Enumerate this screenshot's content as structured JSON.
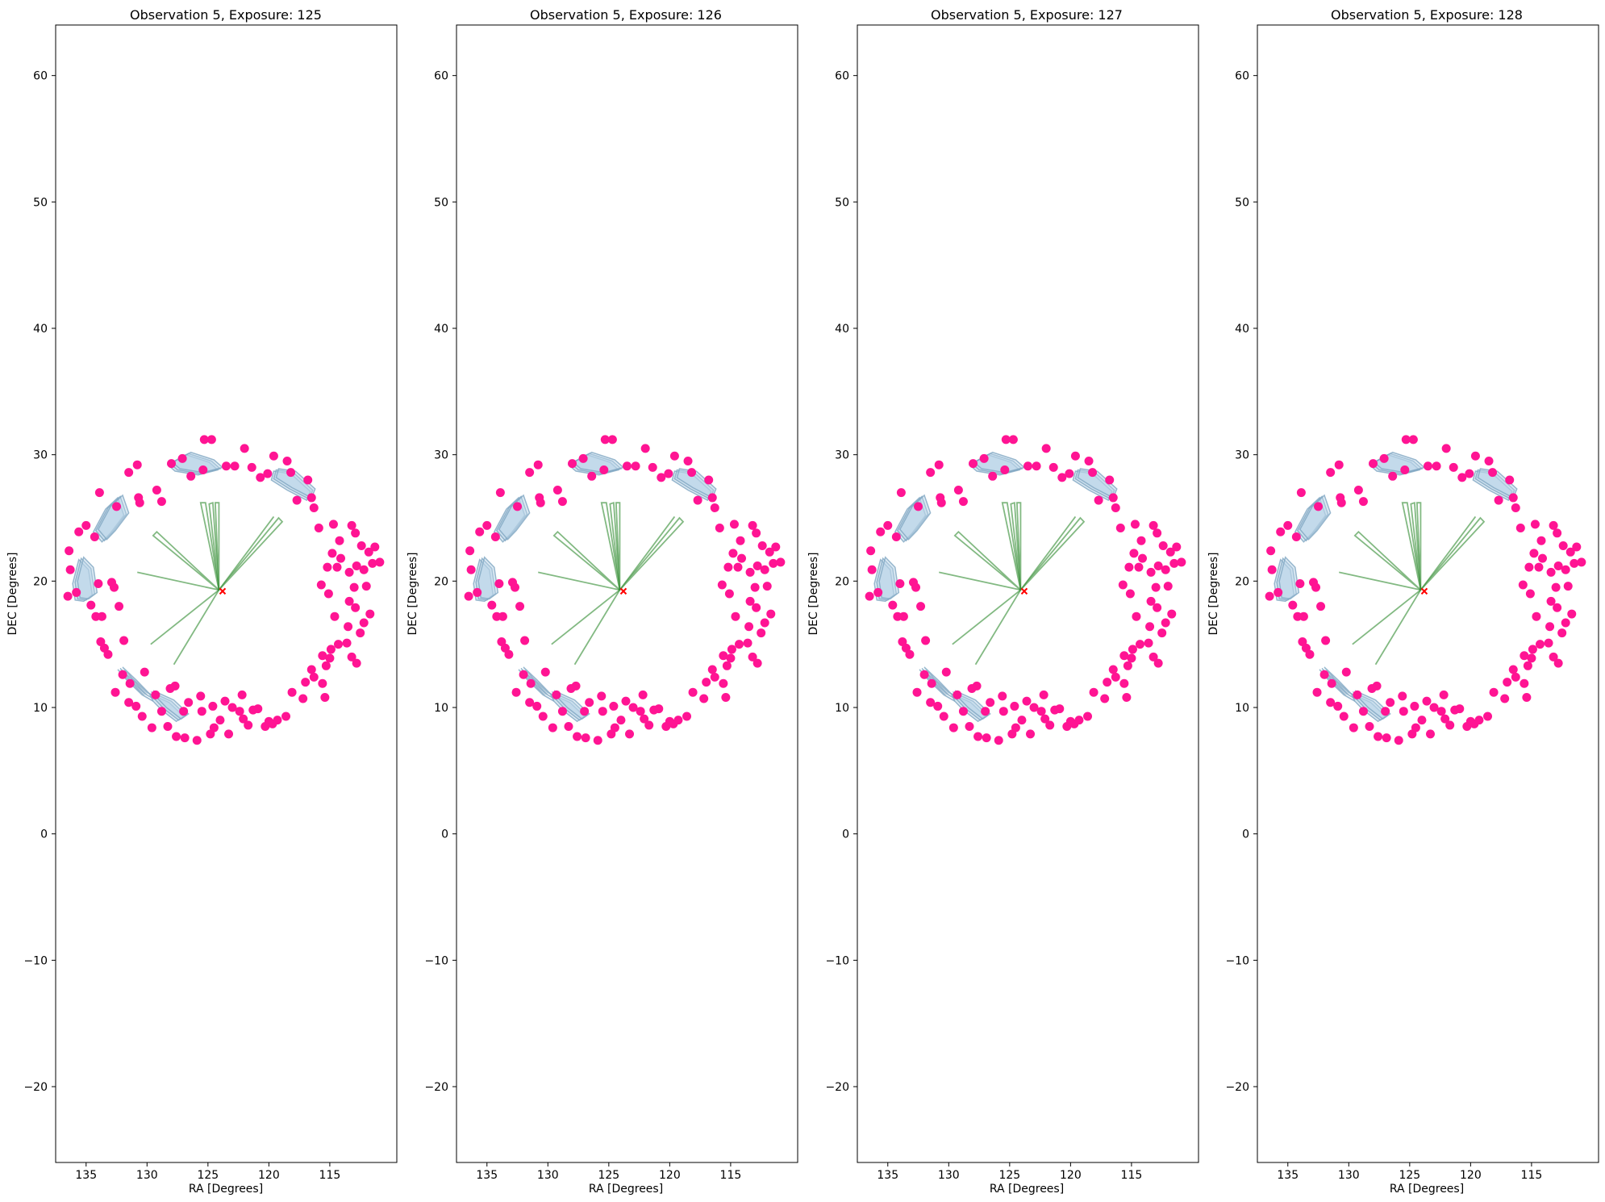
{
  "colors": {
    "source_points": "#ff1493",
    "sector_lines": "#2e8b2e",
    "ccd_fill": "#b7d3e6",
    "ccd_edge": "#7fa6c2",
    "pointing_marker": "#ff0000",
    "axes_frame": "#000000"
  },
  "chart_data": [
    {
      "type": "scatter",
      "title": "Observation 5, Exposure: 125",
      "xlabel": "RA [Degrees]",
      "ylabel": "DEC [Degrees]",
      "xlim": [
        137.5,
        109.5
      ],
      "ylim": [
        -26,
        64
      ],
      "xticks": [
        135,
        130,
        125,
        120,
        115
      ],
      "yticks": [
        -20,
        -10,
        0,
        10,
        20,
        30,
        40,
        50,
        60
      ],
      "grid": false,
      "legend": "none",
      "pointing": [
        123.8,
        19.2
      ]
    },
    {
      "type": "scatter",
      "title": "Observation 5, Exposure: 126",
      "xlabel": "RA [Degrees]",
      "ylabel": "DEC [Degrees]",
      "xlim": [
        137.5,
        109.5
      ],
      "ylim": [
        -26,
        64
      ],
      "xticks": [
        135,
        130,
        125,
        120,
        115
      ],
      "yticks": [
        -20,
        -10,
        0,
        10,
        20,
        30,
        40,
        50,
        60
      ],
      "grid": false,
      "legend": "none",
      "pointing": [
        123.8,
        19.2
      ]
    },
    {
      "type": "scatter",
      "title": "Observation 5, Exposure: 127",
      "xlabel": "RA [Degrees]",
      "ylabel": "DEC [Degrees]",
      "xlim": [
        137.5,
        109.5
      ],
      "ylim": [
        -26,
        64
      ],
      "xticks": [
        135,
        130,
        125,
        120,
        115
      ],
      "yticks": [
        -20,
        -10,
        0,
        10,
        20,
        30,
        40,
        50,
        60
      ],
      "grid": false,
      "legend": "none",
      "pointing": [
        123.8,
        19.2
      ]
    },
    {
      "type": "scatter",
      "title": "Observation 5, Exposure: 128",
      "xlabel": "RA [Degrees]",
      "ylabel": "DEC [Degrees]",
      "xlim": [
        137.5,
        109.5
      ],
      "ylim": [
        -26,
        64
      ],
      "xticks": [
        135,
        130,
        125,
        120,
        115
      ],
      "yticks": [
        -20,
        -10,
        0,
        10,
        20,
        30,
        40,
        50,
        60
      ],
      "grid": false,
      "legend": "none",
      "pointing": [
        123.8,
        19.2
      ]
    }
  ],
  "shared": {
    "points": [
      [
        136.5,
        18.8
      ],
      [
        136.3,
        20.9
      ],
      [
        136.4,
        22.4
      ],
      [
        135.8,
        19.1
      ],
      [
        135.6,
        23.9
      ],
      [
        135.0,
        24.4
      ],
      [
        134.6,
        18.1
      ],
      [
        134.2,
        17.2
      ],
      [
        134.0,
        19.8
      ],
      [
        133.8,
        15.2
      ],
      [
        133.5,
        14.7
      ],
      [
        133.2,
        14.2
      ],
      [
        133.7,
        17.2
      ],
      [
        132.9,
        19.9
      ],
      [
        132.7,
        19.5
      ],
      [
        132.3,
        18.0
      ],
      [
        131.9,
        15.3
      ],
      [
        132.6,
        11.2
      ],
      [
        132.0,
        12.6
      ],
      [
        131.5,
        10.4
      ],
      [
        130.9,
        10.1
      ],
      [
        130.4,
        9.3
      ],
      [
        131.4,
        11.9
      ],
      [
        130.2,
        12.8
      ],
      [
        129.3,
        11.0
      ],
      [
        128.8,
        9.7
      ],
      [
        128.1,
        11.5
      ],
      [
        127.7,
        11.7
      ],
      [
        127.0,
        9.7
      ],
      [
        126.6,
        10.4
      ],
      [
        125.6,
        10.9
      ],
      [
        125.5,
        9.7
      ],
      [
        124.5,
        8.4
      ],
      [
        124.6,
        10.1
      ],
      [
        124.0,
        9.0
      ],
      [
        123.6,
        10.5
      ],
      [
        123.0,
        10.0
      ],
      [
        122.4,
        9.7
      ],
      [
        122.1,
        9.1
      ],
      [
        121.7,
        8.6
      ],
      [
        121.3,
        9.8
      ],
      [
        120.9,
        9.9
      ],
      [
        120.3,
        8.5
      ],
      [
        120.0,
        8.9
      ],
      [
        119.7,
        8.7
      ],
      [
        119.3,
        9.0
      ],
      [
        118.6,
        9.3
      ],
      [
        118.1,
        11.2
      ],
      [
        117.2,
        10.7
      ],
      [
        117.0,
        12.0
      ],
      [
        116.5,
        13.0
      ],
      [
        116.3,
        12.4
      ],
      [
        115.6,
        11.9
      ],
      [
        115.4,
        10.8
      ],
      [
        115.3,
        13.3
      ],
      [
        115.0,
        13.9
      ],
      [
        114.9,
        14.6
      ],
      [
        114.3,
        15.0
      ],
      [
        113.6,
        15.1
      ],
      [
        113.2,
        14.0
      ],
      [
        112.8,
        13.5
      ],
      [
        112.5,
        15.9
      ],
      [
        112.2,
        16.7
      ],
      [
        111.7,
        17.4
      ],
      [
        112.9,
        17.9
      ],
      [
        113.4,
        18.4
      ],
      [
        114.6,
        17.2
      ],
      [
        115.1,
        19.0
      ],
      [
        115.7,
        19.7
      ],
      [
        115.2,
        21.1
      ],
      [
        114.8,
        22.2
      ],
      [
        114.4,
        21.1
      ],
      [
        114.1,
        21.8
      ],
      [
        113.4,
        20.7
      ],
      [
        112.8,
        21.2
      ],
      [
        112.2,
        20.9
      ],
      [
        111.5,
        21.4
      ],
      [
        110.9,
        21.5
      ],
      [
        111.3,
        22.7
      ],
      [
        111.8,
        22.3
      ],
      [
        112.4,
        22.8
      ],
      [
        112.9,
        23.8
      ],
      [
        113.2,
        24.4
      ],
      [
        114.2,
        23.2
      ],
      [
        114.7,
        24.5
      ],
      [
        115.9,
        24.2
      ],
      [
        116.3,
        25.8
      ],
      [
        116.5,
        26.6
      ],
      [
        117.7,
        26.4
      ],
      [
        116.8,
        28.0
      ],
      [
        118.2,
        28.6
      ],
      [
        118.5,
        29.5
      ],
      [
        119.6,
        29.9
      ],
      [
        120.1,
        28.5
      ],
      [
        120.7,
        28.2
      ],
      [
        121.4,
        29.0
      ],
      [
        122.0,
        30.5
      ],
      [
        122.8,
        29.1
      ],
      [
        123.5,
        29.1
      ],
      [
        124.7,
        31.2
      ],
      [
        125.3,
        31.2
      ],
      [
        125.4,
        28.8
      ],
      [
        126.4,
        28.3
      ],
      [
        127.1,
        29.7
      ],
      [
        128.0,
        29.3
      ],
      [
        129.2,
        27.2
      ],
      [
        128.8,
        26.3
      ],
      [
        130.8,
        29.2
      ],
      [
        131.5,
        28.6
      ],
      [
        130.6,
        26.2
      ],
      [
        130.7,
        26.6
      ],
      [
        132.5,
        25.9
      ],
      [
        133.9,
        27.0
      ],
      [
        134.3,
        23.5
      ],
      [
        124.8,
        7.9
      ],
      [
        126.9,
        7.6
      ],
      [
        127.6,
        7.7
      ],
      [
        125.9,
        7.4
      ],
      [
        123.3,
        7.9
      ],
      [
        128.3,
        8.5
      ],
      [
        129.6,
        8.4
      ],
      [
        122.2,
        11.0
      ],
      [
        113.0,
        19.5
      ],
      [
        112.0,
        19.6
      ],
      [
        113.5,
        16.4
      ],
      [
        115.6,
        14.1
      ]
    ],
    "sector_wedges": [
      [
        [
          124.1,
          19.3
        ],
        [
          130.8,
          20.7
        ]
      ],
      [
        [
          124.1,
          19.3
        ],
        [
          129.7,
          15.0
        ]
      ],
      [
        [
          124.1,
          19.3
        ],
        [
          127.8,
          13.4
        ]
      ],
      [
        [
          124.1,
          19.3
        ],
        [
          129.5,
          23.6
        ],
        [
          129.2,
          23.9
        ]
      ],
      [
        [
          124.1,
          19.3
        ],
        [
          125.6,
          26.2
        ],
        [
          125.2,
          26.2
        ]
      ],
      [
        [
          124.1,
          19.3
        ],
        [
          124.9,
          26.1
        ],
        [
          124.6,
          26.2
        ]
      ],
      [
        [
          124.1,
          19.3
        ],
        [
          124.4,
          26.2
        ],
        [
          124.1,
          26.2
        ]
      ],
      [
        [
          124.1,
          19.3
        ],
        [
          119.2,
          25.0
        ],
        [
          118.9,
          24.7
        ]
      ],
      [
        [
          124.1,
          19.3
        ],
        [
          119.6,
          25.1
        ]
      ]
    ],
    "ccd_footprints": [
      [
        [
          136.1,
          19.8
        ],
        [
          135.6,
          21.7
        ],
        [
          134.8,
          20.9
        ],
        [
          134.5,
          18.9
        ],
        [
          135.2,
          18.4
        ],
        [
          135.9,
          18.5
        ]
      ],
      [
        [
          134.4,
          23.9
        ],
        [
          133.4,
          25.7
        ],
        [
          132.4,
          26.6
        ],
        [
          131.9,
          25.2
        ],
        [
          133.0,
          23.8
        ],
        [
          133.7,
          23.1
        ]
      ],
      [
        [
          128.3,
          29.2
        ],
        [
          126.8,
          30.0
        ],
        [
          124.9,
          29.4
        ],
        [
          124.2,
          28.8
        ],
        [
          125.8,
          28.4
        ],
        [
          127.7,
          28.7
        ]
      ],
      [
        [
          119.6,
          28.7
        ],
        [
          118.2,
          28.5
        ],
        [
          116.6,
          27.1
        ],
        [
          116.9,
          26.4
        ],
        [
          118.5,
          27.2
        ],
        [
          119.8,
          28.0
        ]
      ],
      [
        [
          132.4,
          13.0
        ],
        [
          131.3,
          12.0
        ],
        [
          130.2,
          10.9
        ],
        [
          129.5,
          10.5
        ],
        [
          130.4,
          11.0
        ],
        [
          131.6,
          12.1
        ]
      ],
      [
        [
          129.8,
          11.1
        ],
        [
          128.2,
          10.4
        ],
        [
          127.0,
          9.3
        ],
        [
          127.6,
          8.9
        ],
        [
          128.8,
          9.8
        ],
        [
          129.5,
          10.5
        ]
      ]
    ]
  }
}
